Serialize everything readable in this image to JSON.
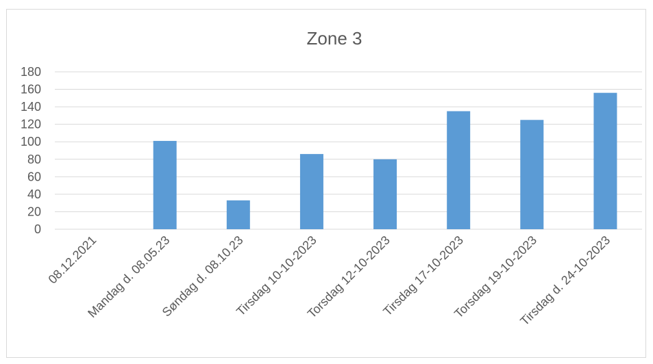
{
  "chart_data": {
    "type": "bar",
    "title": "Zone 3",
    "categories": [
      "08.12.2021",
      "Mandag d. 08.05.23",
      "Søndag d. 08.10.23",
      "Tirsdag 10-10-2023",
      "Torsdag 12-10-2023",
      "Tirsdag 17-10-2023",
      "Torsdag 19-10-2023",
      "Tirsdag d. 24-10-2023"
    ],
    "values": [
      0,
      101,
      33,
      86,
      80,
      135,
      125,
      156
    ],
    "ylim": [
      0,
      180
    ],
    "ytick_step": 20,
    "xlabel": "",
    "ylabel": "",
    "grid": true,
    "legend": "none",
    "colors": {
      "bar": "#5b9bd5",
      "grid": "#d9d9d9",
      "text": "#595959",
      "border": "#d9d9d9"
    }
  }
}
